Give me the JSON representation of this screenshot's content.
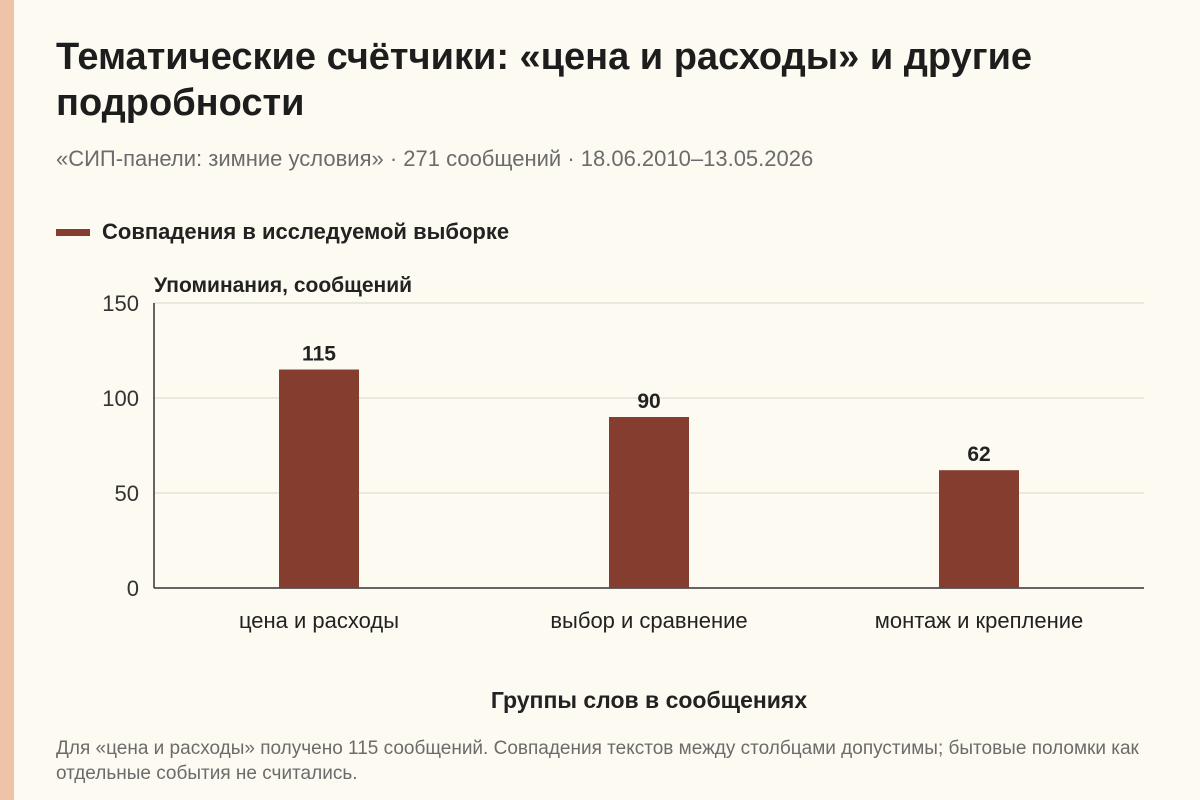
{
  "title": "Тематические счётчики: «цена и расходы» и другие подробности",
  "subtitle": "«СИП-панели: зимние условия» · 271 сообщений · 18.06.2010–13.05.2026",
  "note": "Для «цена и расходы» получено 115 сообщений. Совпадения текстов между столбцами допустимы; бытовые поломки как отдельные события не считались.",
  "colors": {
    "bar": "#843d2e",
    "accent": "#efc3a8",
    "grid": "#d9d6cc",
    "axis": "#333333"
  },
  "chart_data": {
    "type": "bar",
    "title": "Тематические счётчики: «цена и расходы» и другие подробности",
    "xlabel": "Группы слов в сообщениях",
    "ylabel": "Упоминания, сообщений",
    "categories": [
      "цена и расходы",
      "выбор и сравнение",
      "монтаж и крепление"
    ],
    "series": [
      {
        "name": "Совпадения в исследуемой выборке",
        "values": [
          115,
          90,
          62
        ]
      }
    ],
    "ylim": [
      0,
      150
    ],
    "yticks": [
      0,
      50,
      100,
      150
    ],
    "grid": true,
    "legend": "top-left",
    "data_labels": true
  }
}
